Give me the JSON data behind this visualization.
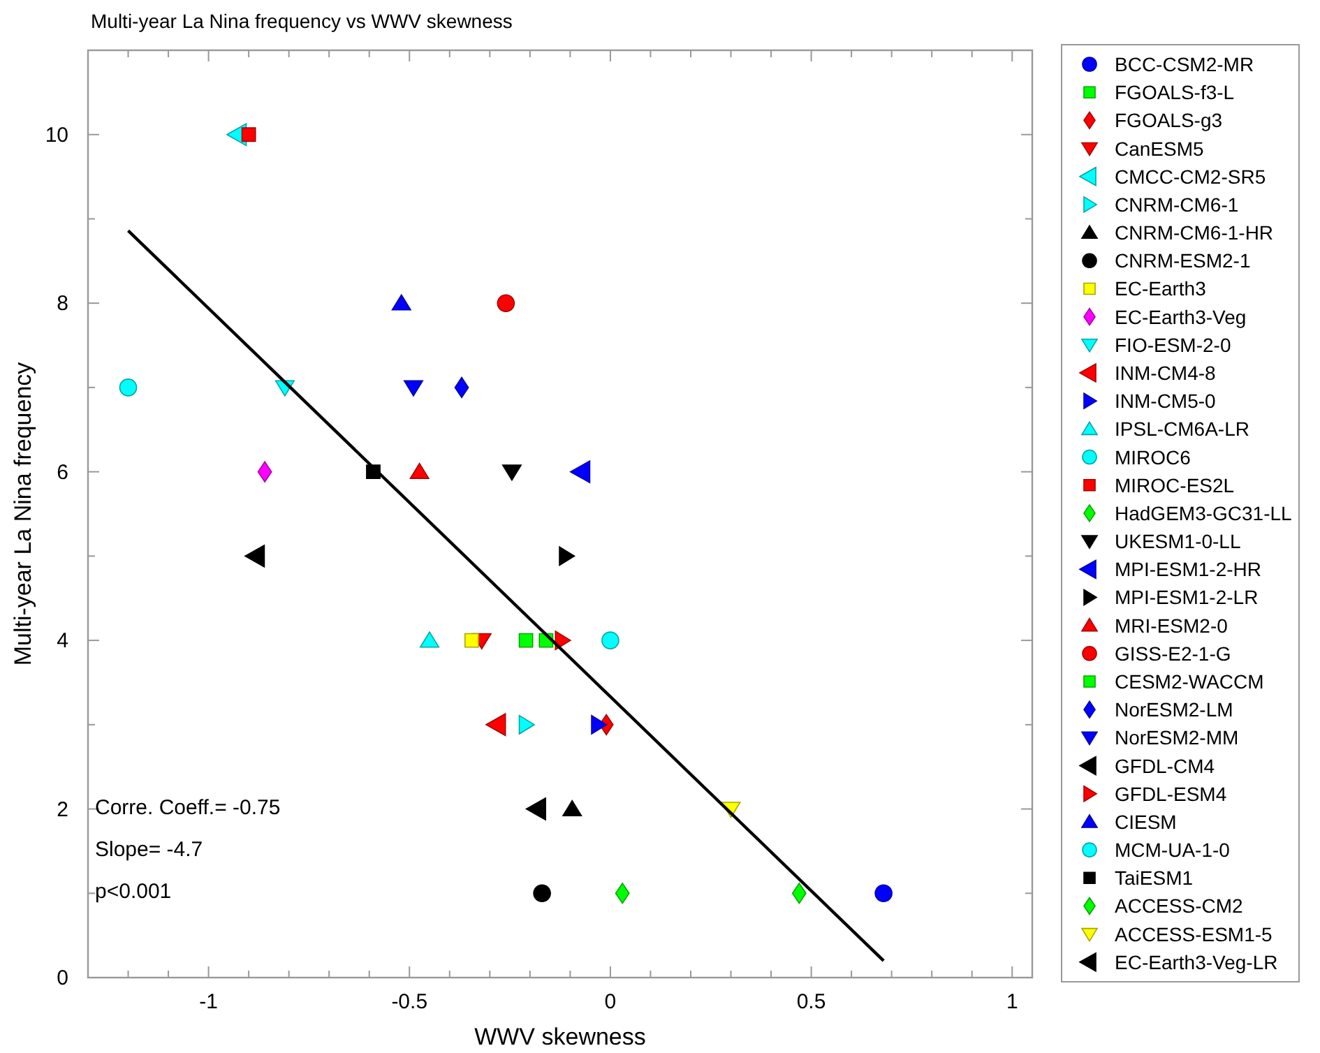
{
  "chart_data": {
    "type": "scatter",
    "title": "Multi-year La Nina frequency vs WWV skewness",
    "xlabel": "WWV skewness",
    "ylabel": "Multi-year La Nina frequency",
    "xlim": [
      -1.3,
      1.05
    ],
    "ylim": [
      0,
      11
    ],
    "xticks": [
      {
        "value": -1.3,
        "label": null
      },
      {
        "value": -1.2,
        "label": null
      },
      {
        "value": -1.1,
        "label": null
      },
      -1,
      {
        "value": -0.9,
        "label": null
      },
      {
        "value": -0.8,
        "label": null
      },
      {
        "value": -0.7,
        "label": null
      },
      {
        "value": -0.6,
        "label": null
      },
      -0.5,
      {
        "value": -0.4,
        "label": null
      },
      {
        "value": -0.3,
        "label": null
      },
      {
        "value": -0.2,
        "label": null
      },
      {
        "value": -0.1,
        "label": null
      },
      0,
      {
        "value": 0.1,
        "label": null
      },
      {
        "value": 0.2,
        "label": null
      },
      {
        "value": 0.3,
        "label": null
      },
      {
        "value": 0.4,
        "label": null
      },
      0.5,
      {
        "value": 0.6,
        "label": null
      },
      {
        "value": 0.7,
        "label": null
      },
      {
        "value": 0.8,
        "label": null
      },
      {
        "value": 0.9,
        "label": null
      },
      1
    ],
    "yticks": [
      0,
      {
        "value": 1,
        "label": null
      },
      2,
      {
        "value": 3,
        "label": null
      },
      4,
      {
        "value": 5,
        "label": null
      },
      6,
      {
        "value": 7,
        "label": null
      },
      8,
      {
        "value": 9,
        "label": null
      },
      10,
      {
        "value": 11,
        "label": null
      }
    ],
    "grid": false,
    "legend": "right",
    "annotations": [
      "Corre. Coeff.= -0.75",
      "Slope= -4.7",
      "p<0.001"
    ],
    "series": [
      {
        "name": "BCC-CSM2-MR",
        "color": "#0000ff",
        "marker": "circle",
        "x": [
          0.68
        ],
        "values": [
          1
        ]
      },
      {
        "name": "FGOALS-f3-L",
        "color": "#00ff00",
        "marker": "square",
        "x": [
          -0.21
        ],
        "values": [
          4
        ]
      },
      {
        "name": "FGOALS-g3",
        "color": "#ff0000",
        "marker": "diamond",
        "x": [
          -0.01
        ],
        "values": [
          3
        ]
      },
      {
        "name": "CanESM5",
        "color": "#ff0000",
        "marker": "triangle-down",
        "x": [
          -0.32
        ],
        "values": [
          4
        ]
      },
      {
        "name": "CMCC-CM2-SR5",
        "color": "#00ffff",
        "marker": "triangle-left",
        "x": [
          -0.925
        ],
        "values": [
          10
        ]
      },
      {
        "name": "CNRM-CM6-1",
        "color": "#00ffff",
        "marker": "triangle-right",
        "x": [
          -0.21
        ],
        "values": [
          3
        ]
      },
      {
        "name": "CNRM-CM6-1-HR",
        "color": "#000000",
        "marker": "triangle",
        "x": [
          -0.095
        ],
        "values": [
          2
        ]
      },
      {
        "name": "CNRM-ESM2-1",
        "color": "#000000",
        "marker": "circle",
        "x": [
          -0.17
        ],
        "values": [
          1
        ]
      },
      {
        "name": "EC-Earth3",
        "color": "#ffff00",
        "marker": "square",
        "x": [
          -0.345
        ],
        "values": [
          4
        ]
      },
      {
        "name": "EC-Earth3-Veg",
        "color": "#ff00ff",
        "marker": "diamond",
        "x": [
          -0.86
        ],
        "values": [
          6
        ]
      },
      {
        "name": "FIO-ESM-2-0",
        "color": "#00ffff",
        "marker": "triangle-down",
        "x": [
          -0.81
        ],
        "values": [
          7
        ]
      },
      {
        "name": "INM-CM4-8",
        "color": "#ff0000",
        "marker": "triangle-left",
        "x": [
          -0.28
        ],
        "values": [
          3
        ]
      },
      {
        "name": "INM-CM5-0",
        "color": "#0000ff",
        "marker": "triangle-right",
        "x": [
          -0.03
        ],
        "values": [
          3
        ]
      },
      {
        "name": "IPSL-CM6A-LR",
        "color": "#00ffff",
        "marker": "triangle",
        "x": [
          -0.45
        ],
        "values": [
          4
        ]
      },
      {
        "name": "MIROC6",
        "color": "#00ffff",
        "marker": "circle",
        "x": [
          -1.2
        ],
        "values": [
          7
        ]
      },
      {
        "name": "MIROC-ES2L",
        "color": "#ff0000",
        "marker": "square",
        "x": [
          -0.9
        ],
        "values": [
          10
        ]
      },
      {
        "name": "HadGEM3-GC31-LL",
        "color": "#00ff00",
        "marker": "diamond",
        "x": [
          0.47
        ],
        "values": [
          1
        ]
      },
      {
        "name": "UKESM1-0-LL",
        "color": "#000000",
        "marker": "triangle-down",
        "x": [
          -0.245
        ],
        "values": [
          6
        ]
      },
      {
        "name": "MPI-ESM1-2-HR",
        "color": "#0000ff",
        "marker": "triangle-left",
        "x": [
          -0.07
        ],
        "values": [
          6
        ]
      },
      {
        "name": "MPI-ESM1-2-LR",
        "color": "#000000",
        "marker": "triangle-right",
        "x": [
          -0.11
        ],
        "values": [
          5
        ]
      },
      {
        "name": "MRI-ESM2-0",
        "color": "#ff0000",
        "marker": "triangle",
        "x": [
          -0.475
        ],
        "values": [
          6
        ]
      },
      {
        "name": "GISS-E2-1-G",
        "color": "#ff0000",
        "marker": "circle",
        "x": [
          -0.26
        ],
        "values": [
          8
        ]
      },
      {
        "name": "CESM2-WACCM",
        "color": "#00ff00",
        "marker": "square",
        "x": [
          -0.16
        ],
        "values": [
          4
        ]
      },
      {
        "name": "NorESM2-LM",
        "color": "#0000ff",
        "marker": "diamond",
        "x": [
          -0.37
        ],
        "values": [
          7
        ]
      },
      {
        "name": "NorESM2-MM",
        "color": "#0000ff",
        "marker": "triangle-down",
        "x": [
          -0.49
        ],
        "values": [
          7
        ]
      },
      {
        "name": "GFDL-CM4",
        "color": "#000000",
        "marker": "triangle-left",
        "x": [
          -0.18
        ],
        "values": [
          2
        ]
      },
      {
        "name": "GFDL-ESM4",
        "color": "#ff0000",
        "marker": "triangle-right",
        "x": [
          -0.12
        ],
        "values": [
          4
        ]
      },
      {
        "name": "CIESM",
        "color": "#0000ff",
        "marker": "triangle",
        "x": [
          -0.52
        ],
        "values": [
          8
        ]
      },
      {
        "name": "MCM-UA-1-0",
        "color": "#00ffff",
        "marker": "circle",
        "x": [
          0
        ],
        "values": [
          4
        ]
      },
      {
        "name": "TaiESM1",
        "color": "#000000",
        "marker": "square",
        "x": [
          -0.59
        ],
        "values": [
          6
        ]
      },
      {
        "name": "ACCESS-CM2",
        "color": "#00ff00",
        "marker": "diamond",
        "x": [
          0.03
        ],
        "values": [
          1
        ]
      },
      {
        "name": "ACCESS-ESM1-5",
        "color": "#ffff00",
        "marker": "triangle-down",
        "x": [
          0.3
        ],
        "values": [
          2
        ]
      },
      {
        "name": "EC-Earth3-Veg-LR",
        "color": "#000000",
        "marker": "triangle-left",
        "x": [
          -0.88
        ],
        "values": [
          5
        ]
      },
      {
        "type": "line",
        "color": "#000000",
        "marker": "none",
        "line_style": "solid",
        "x": [
          -1.2,
          0.68
        ],
        "values": [
          8.86,
          0.2
        ]
      }
    ]
  }
}
